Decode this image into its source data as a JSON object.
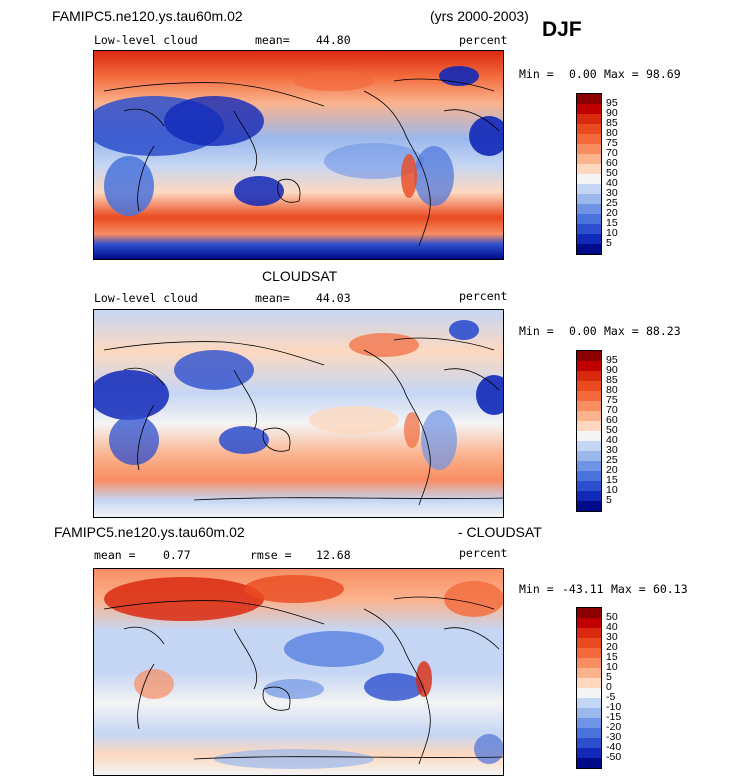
{
  "header": {
    "model_name": "FAMIPC5.ne120.ys.tau60m.02",
    "years": "(yrs 2000-2003)",
    "season": "DJF"
  },
  "panels": [
    {
      "variable": "Low-level cloud",
      "stat_label": "mean=",
      "stat_value": "44.80",
      "units": "percent",
      "min_label": "Min =",
      "min_value": "0.00",
      "max_label": "Max =",
      "max_value": "98.69"
    },
    {
      "title": "CLOUDSAT",
      "variable": "Low-level cloud",
      "stat_label": "mean=",
      "stat_value": "44.03",
      "units": "percent",
      "min_label": "Min =",
      "min_value": "0.00",
      "max_label": "Max =",
      "max_value": "88.23"
    },
    {
      "title_left": "FAMIPC5.ne120.ys.tau60m.02",
      "title_right": "- CLOUDSAT",
      "stat1_label": "mean =",
      "stat1_value": "0.77",
      "stat2_label": "rmse =",
      "stat2_value": "12.68",
      "units": "percent",
      "min_label": "Min =",
      "min_value": "-43.11",
      "max_label": "Max =",
      "max_value": "60.13"
    }
  ],
  "chart_data": [
    {
      "type": "heatmap",
      "title": "FAMIPC5.ne120.ys.tau60m.02",
      "variable": "Low-level cloud",
      "units": "percent",
      "mean": 44.8,
      "min": 0.0,
      "max": 98.69,
      "colorbar_ticks": [
        "95",
        "90",
        "85",
        "80",
        "75",
        "70",
        "60",
        "50",
        "40",
        "30",
        "25",
        "20",
        "15",
        "10",
        "5"
      ],
      "colors": [
        "#8b0000",
        "#c00000",
        "#d92a10",
        "#ea4a20",
        "#f26a3c",
        "#f88d62",
        "#fbb38e",
        "#fdd8bf",
        "#f4f4f4",
        "#c5d6f4",
        "#9ab8ec",
        "#6f94e6",
        "#4a73dc",
        "#2d4fce",
        "#1128b8",
        "#000b8a"
      ]
    },
    {
      "type": "heatmap",
      "title": "CLOUDSAT",
      "variable": "Low-level cloud",
      "units": "percent",
      "mean": 44.03,
      "min": 0.0,
      "max": 88.23,
      "colorbar_ticks": [
        "95",
        "90",
        "85",
        "80",
        "75",
        "70",
        "60",
        "50",
        "40",
        "30",
        "25",
        "20",
        "15",
        "10",
        "5"
      ],
      "colors": [
        "#8b0000",
        "#c00000",
        "#d92a10",
        "#ea4a20",
        "#f26a3c",
        "#f88d62",
        "#fbb38e",
        "#fdd8bf",
        "#f4f4f4",
        "#c5d6f4",
        "#9ab8ec",
        "#6f94e6",
        "#4a73dc",
        "#2d4fce",
        "#1128b8",
        "#000b8a"
      ]
    },
    {
      "type": "heatmap",
      "title": "FAMIPC5.ne120.ys.tau60m.02 - CLOUDSAT",
      "units": "percent",
      "mean": 0.77,
      "rmse": 12.68,
      "min": -43.11,
      "max": 60.13,
      "colorbar_ticks": [
        "50",
        "40",
        "30",
        "20",
        "15",
        "10",
        "5",
        "0",
        "-5",
        "-10",
        "-15",
        "-20",
        "-30",
        "-40",
        "-50"
      ],
      "colors": [
        "#8b0000",
        "#c00000",
        "#d92a10",
        "#ea4a20",
        "#f26a3c",
        "#f88d62",
        "#fbb38e",
        "#fdd8bf",
        "#f4f4f4",
        "#c5d6f4",
        "#9ab8ec",
        "#6f94e6",
        "#4a73dc",
        "#2d4fce",
        "#1128b8",
        "#000b8a"
      ]
    }
  ]
}
